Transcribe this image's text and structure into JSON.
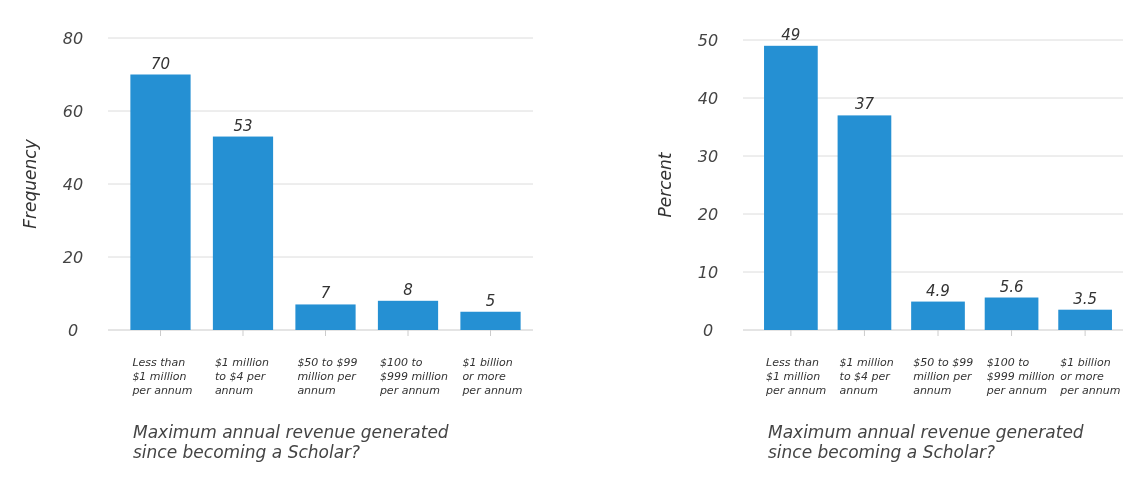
{
  "chart_data": [
    {
      "type": "bar",
      "categories": [
        "Less than\n$1 million\nper annum",
        "$1 million\nto $4 per\nannum",
        "$50 to $99\nmillion per\nannum",
        "$100 to\n$999 million\nper annum",
        "$1 billion\nor more\nper annum"
      ],
      "values": [
        70,
        53,
        7,
        8,
        5
      ],
      "color": "#2590d3",
      "ylim": [
        0,
        80
      ],
      "yticks": [
        0,
        20,
        40,
        60,
        80
      ],
      "grid": "y",
      "data_labels": true,
      "ylabel": "Frequency",
      "xlabel": "Maximum annual revenue generated\nsince becoming a Scholar?"
    },
    {
      "type": "bar",
      "categories": [
        "Less than\n$1 million\nper annum",
        "$1 million\nto $4 per\nannum",
        "$50 to $99\nmillion per\nannum",
        "$100 to\n$999 million\nper annum",
        "$1 billion\nor more\nper annum"
      ],
      "values": [
        49,
        37,
        4.9,
        5.6,
        3.5
      ],
      "color": "#2590d3",
      "ylim": [
        0,
        50
      ],
      "yticks": [
        0,
        10,
        20,
        30,
        40,
        50
      ],
      "grid": "y",
      "data_labels": true,
      "ylabel": "Percent",
      "xlabel": "Maximum annual revenue generated\nsince becoming a Scholar?"
    }
  ]
}
